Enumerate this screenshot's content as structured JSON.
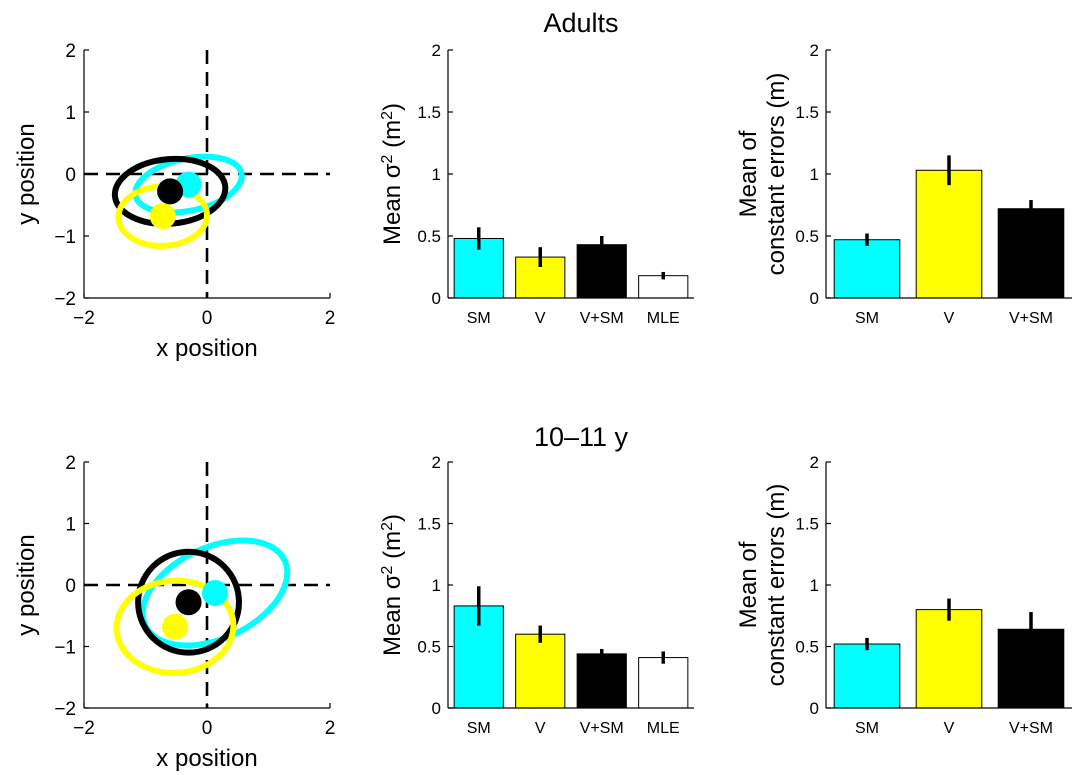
{
  "panels": [
    {
      "title": "Adults",
      "chart_data": [
        {
          "type": "scatter",
          "xlabel": "x position",
          "ylabel": "y position",
          "xlim": [
            -2,
            2
          ],
          "ylim": [
            -2,
            2
          ],
          "xticks": [
            "−2",
            "0",
            "2"
          ],
          "yticks": [
            "−2",
            "−1",
            "0",
            "1",
            "2"
          ],
          "crosshair": "dashed lines at x = 0 and y = 0",
          "series": [
            {
              "color": "#00ffff",
              "center": [
                -0.3,
                -0.17
              ],
              "ellipse": {
                "rx": 0.88,
                "ry": 0.42,
                "angle_deg": -12
              }
            },
            {
              "color": "#000000",
              "center": [
                -0.6,
                -0.28
              ],
              "ellipse": {
                "rx": 0.9,
                "ry": 0.52,
                "angle_deg": -5
              }
            },
            {
              "color": "#ffff00",
              "center": [
                -0.72,
                -0.68
              ],
              "ellipse": {
                "rx": 0.72,
                "ry": 0.48,
                "angle_deg": -2
              }
            }
          ]
        },
        {
          "type": "bar",
          "categories": [
            "SM",
            "V",
            "V+SM",
            "MLE"
          ],
          "values": [
            0.48,
            0.33,
            0.43,
            0.18
          ],
          "errors": [
            0.09,
            0.08,
            0.07,
            0.03
          ],
          "colors": [
            "#00ffff",
            "#ffff00",
            "#000000",
            "#ffffff"
          ],
          "ylim": [
            0,
            2
          ],
          "yticks": [
            "0",
            "0.5",
            "1",
            "1.5",
            "2"
          ],
          "ylabel_main": "Mean σ",
          "ylabel_sup": "2",
          "ylabel_tail": " (m",
          "ylabel_sup2": "2",
          "ylabel_end": ")"
        },
        {
          "type": "bar",
          "categories": [
            "SM",
            "V",
            "V+SM"
          ],
          "values": [
            0.47,
            1.03,
            0.72
          ],
          "errors": [
            0.05,
            0.12,
            0.07
          ],
          "colors": [
            "#00ffff",
            "#ffff00",
            "#000000"
          ],
          "ylim": [
            0,
            2
          ],
          "yticks": [
            "0",
            "0.5",
            "1",
            "1.5",
            "2"
          ],
          "ylabel_line1": "Mean of",
          "ylabel_line2": "constant errors (m)"
        }
      ]
    },
    {
      "title": "10–11 y",
      "chart_data": [
        {
          "type": "scatter",
          "xlabel": "x position",
          "ylabel": "y position",
          "xlim": [
            -2,
            2
          ],
          "ylim": [
            -2,
            2
          ],
          "xticks": [
            "−2",
            "0",
            "2"
          ],
          "yticks": [
            "−2",
            "−1",
            "0",
            "1",
            "2"
          ],
          "crosshair": "dashed lines at x = 0 and y = 0",
          "series": [
            {
              "color": "#00ffff",
              "center": [
                0.13,
                -0.13
              ],
              "ellipse": {
                "rx": 1.25,
                "ry": 0.74,
                "angle_deg": -25
              }
            },
            {
              "color": "#000000",
              "center": [
                -0.3,
                -0.28
              ],
              "ellipse": {
                "rx": 0.82,
                "ry": 0.82,
                "angle_deg": 0
              }
            },
            {
              "color": "#ffff00",
              "center": [
                -0.52,
                -0.68
              ],
              "ellipse": {
                "rx": 0.95,
                "ry": 0.75,
                "angle_deg": -3
              }
            }
          ]
        },
        {
          "type": "bar",
          "categories": [
            "SM",
            "V",
            "V+SM",
            "MLE"
          ],
          "values": [
            0.83,
            0.6,
            0.44,
            0.41
          ],
          "errors": [
            0.16,
            0.07,
            0.04,
            0.05
          ],
          "colors": [
            "#00ffff",
            "#ffff00",
            "#000000",
            "#ffffff"
          ],
          "ylim": [
            0,
            2
          ],
          "yticks": [
            "0",
            "0.5",
            "1",
            "1.5",
            "2"
          ],
          "ylabel_main": "Mean σ",
          "ylabel_sup": "2",
          "ylabel_tail": " (m",
          "ylabel_sup2": "2",
          "ylabel_end": ")"
        },
        {
          "type": "bar",
          "categories": [
            "SM",
            "V",
            "V+SM"
          ],
          "values": [
            0.52,
            0.8,
            0.64
          ],
          "errors": [
            0.05,
            0.09,
            0.14
          ],
          "colors": [
            "#00ffff",
            "#ffff00",
            "#000000"
          ],
          "ylim": [
            0,
            2
          ],
          "yticks": [
            "0",
            "0.5",
            "1",
            "1.5",
            "2"
          ],
          "ylabel_line1": "Mean of",
          "ylabel_line2": "constant errors (m)"
        }
      ]
    }
  ]
}
